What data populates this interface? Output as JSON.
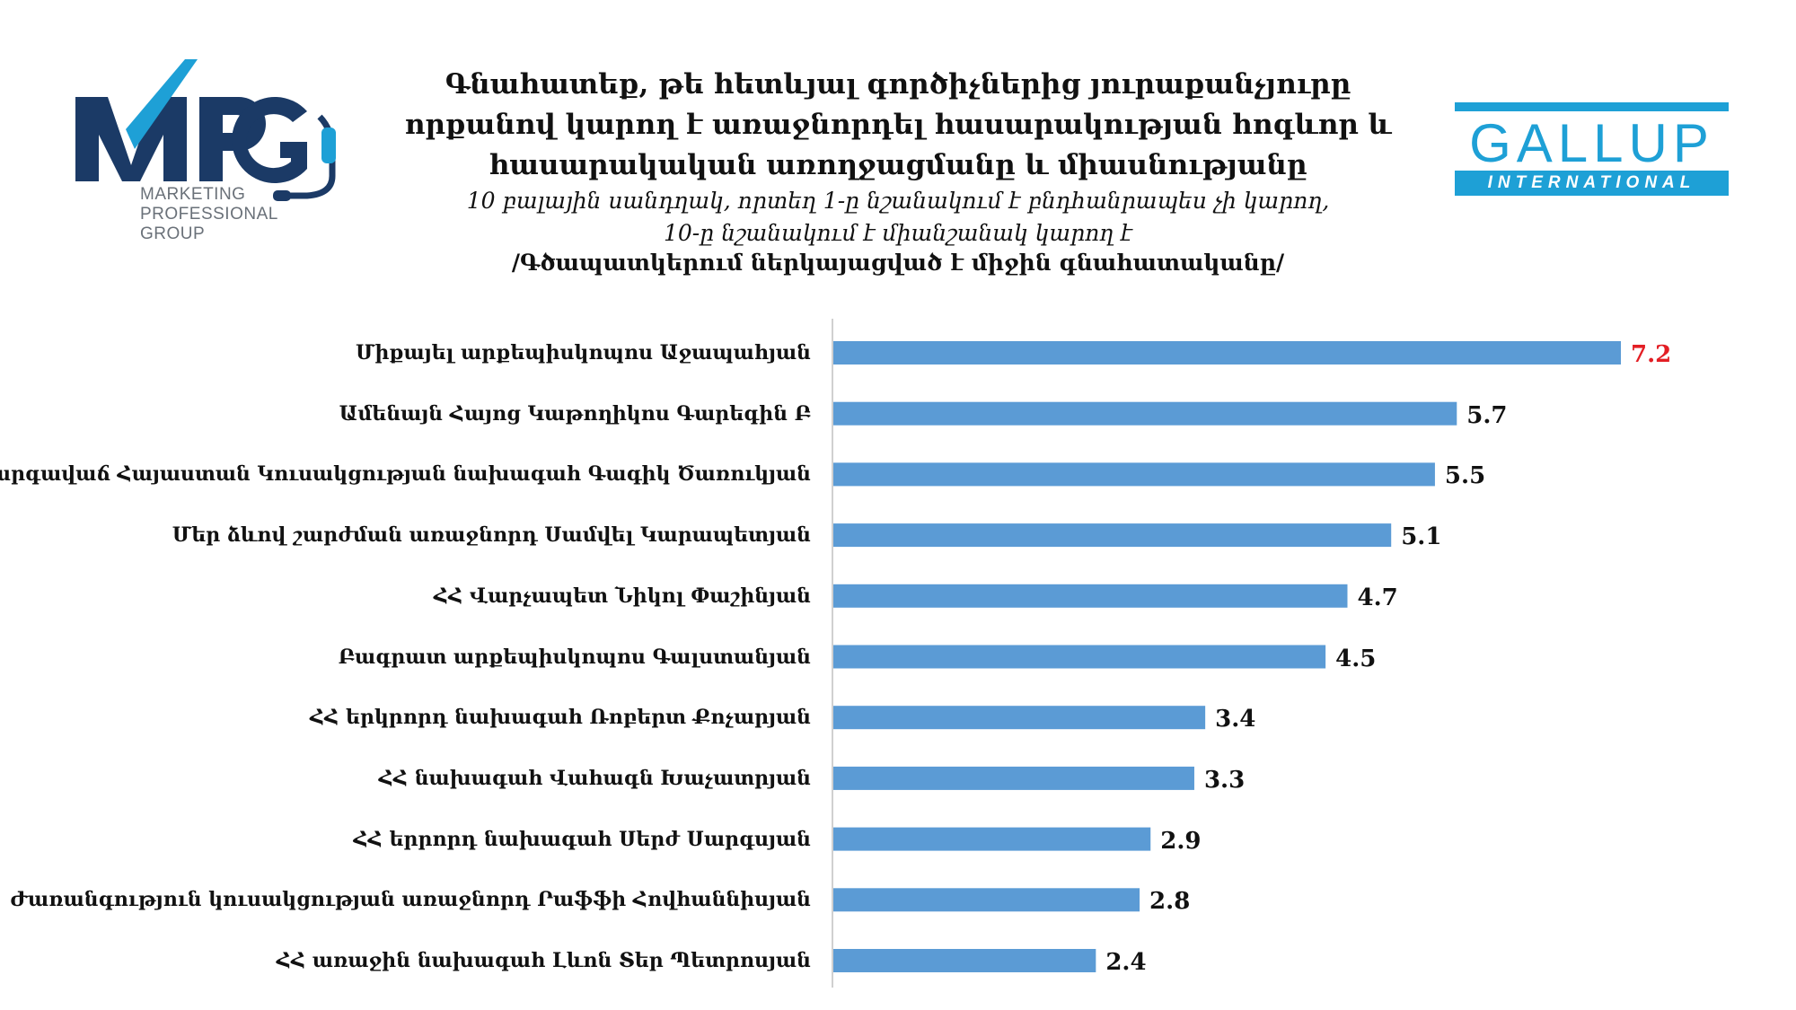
{
  "header": {
    "mpg_logo_text": "MPG",
    "mpg_subtitle": [
      "MARKETING",
      "PROFESSIONAL",
      "GROUP"
    ],
    "gallup_name": "GALLUP",
    "gallup_band": "INTERNATIONAL",
    "title_lines": [
      "Գնահատեք, թե հետևյալ գործիչներից յուրաքանչյուրը",
      "որքանով կարող է առաջնորդել հասարակության հոգևոր և",
      "հասարակական առողջացմանը և միասնությանը"
    ],
    "subtitle_lines": [
      "10 բալային սանդղակ,  որտեղ 1-ը նշանակում է բնդհանրապես չի կարող,",
      "10-ը նշանակում է միանշանակ կարող է"
    ],
    "note": "/Գծապատկերում ներկայացված է միջին գնահատականը/"
  },
  "colors": {
    "bar": "#5b9bd5",
    "highlight_value": "#e31e24",
    "mpg_dark": "#1b3a66",
    "mpg_light": "#1ea0d6",
    "gallup": "#1ea0d6"
  },
  "chart_data": {
    "type": "bar",
    "orientation": "horizontal",
    "categories": [
      "Միքայել արքեպիսկոպոս Աջապահյան",
      "Ամենայն Հայոց Կաթողիկոս Գարեգին Բ",
      "Բարգավաճ Հայաստան Կուսակցության նախագահ Գագիկ Ծառուկյան",
      "Մեր ձևով շարժման առաջնորդ Սամվել Կարապետյան",
      "ՀՀ Վարչապետ Նիկոլ Փաշինյան",
      "Բագրատ արքեպիսկոպոս Գալստանյան",
      "ՀՀ երկրորդ նախագահ Ռոբերտ Քոչարյան",
      "ՀՀ նախագահ Վահագն Խաչատրյան",
      "ՀՀ երրորդ նախագահ Սերժ Սարգսյան",
      "Ժառանգություն կուսակցության առաջնորդ Րաֆֆի Հովհաննիսյան",
      "ՀՀ առաջին նախագահ Լևոն Տեր Պետրոսյան"
    ],
    "values": [
      7.2,
      5.7,
      5.5,
      5.1,
      4.7,
      4.5,
      3.4,
      3.3,
      2.9,
      2.8,
      2.4
    ],
    "value_labels": [
      "7.2",
      "5.7",
      "5.5",
      "5.1",
      "4.7",
      "4.5",
      "3.4",
      "3.3",
      "2.9",
      "2.8",
      "2.4"
    ],
    "highlight_index": 0,
    "xlim": [
      0,
      8
    ],
    "grid": false,
    "legend": "none"
  }
}
